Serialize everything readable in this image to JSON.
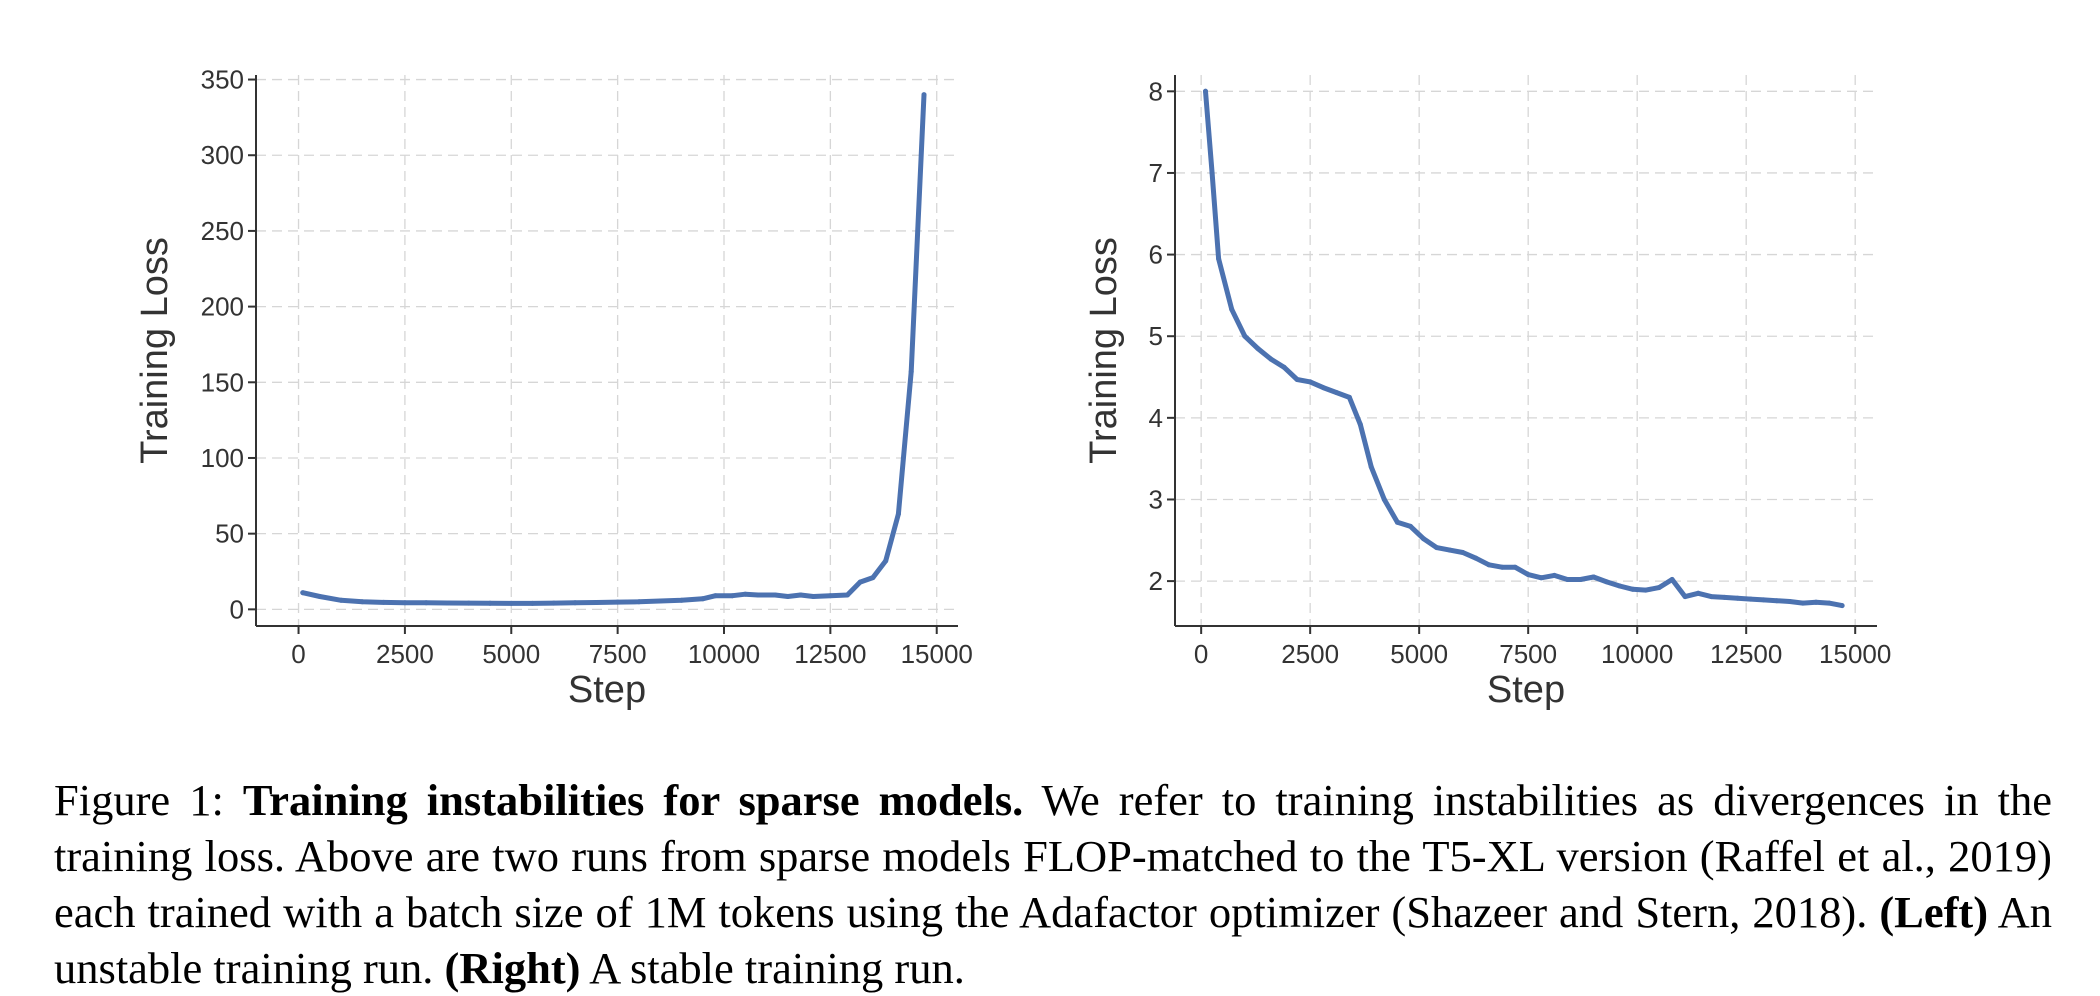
{
  "chart_data": [
    {
      "type": "line",
      "title": "",
      "xlabel": "Step",
      "ylabel": "Training Loss",
      "xlim": [
        -1000,
        15500
      ],
      "ylim": [
        -11,
        353
      ],
      "xticks": [
        0,
        2500,
        5000,
        7500,
        10000,
        12500,
        15000
      ],
      "yticks": [
        0,
        50,
        100,
        150,
        200,
        250,
        300,
        350
      ],
      "grid": true,
      "series": [
        {
          "color": "#4c72b0",
          "x": [
            100,
            500,
            1000,
            1500,
            2000,
            2500,
            3000,
            3500,
            4000,
            4500,
            5000,
            5500,
            6000,
            6500,
            7000,
            7500,
            8000,
            8500,
            9000,
            9500,
            9800,
            10200,
            10500,
            10800,
            11200,
            11500,
            11800,
            12100,
            12500,
            12900,
            13200,
            13500,
            13800,
            14100,
            14400,
            14700
          ],
          "y": [
            11,
            8.5,
            6,
            5,
            4.6,
            4.4,
            4.3,
            4.2,
            4.1,
            4.0,
            3.9,
            3.9,
            4.1,
            4.3,
            4.5,
            4.8,
            5,
            5.5,
            6,
            7,
            9,
            9,
            10,
            9.5,
            9.5,
            8.5,
            9.5,
            8.5,
            9,
            9.5,
            18,
            21,
            32,
            63,
            157,
            340
          ]
        }
      ]
    },
    {
      "type": "line",
      "title": "",
      "xlabel": "Step",
      "ylabel": "Training Loss",
      "xlim": [
        -600,
        15500
      ],
      "ylim": [
        1.45,
        8.2
      ],
      "xticks": [
        0,
        2500,
        5000,
        7500,
        10000,
        12500,
        15000
      ],
      "yticks": [
        2,
        3,
        4,
        5,
        6,
        7,
        8
      ],
      "grid": true,
      "series": [
        {
          "color": "#4c72b0",
          "x": [
            100,
            250,
            400,
            700,
            1000,
            1300,
            1600,
            1900,
            2200,
            2500,
            2800,
            3100,
            3400,
            3650,
            3900,
            4200,
            4500,
            4800,
            5100,
            5400,
            5700,
            6000,
            6300,
            6600,
            6900,
            7200,
            7500,
            7800,
            8100,
            8400,
            8700,
            9000,
            9300,
            9600,
            9900,
            10200,
            10500,
            10800,
            11100,
            11400,
            11700,
            12000,
            12300,
            12600,
            12900,
            13200,
            13500,
            13800,
            14100,
            14400,
            14700
          ],
          "y": [
            8.0,
            7.0,
            5.95,
            5.33,
            5.0,
            4.85,
            4.72,
            4.62,
            4.47,
            4.44,
            4.37,
            4.31,
            4.25,
            3.92,
            3.4,
            3.0,
            2.72,
            2.67,
            2.52,
            2.41,
            2.38,
            2.35,
            2.28,
            2.2,
            2.17,
            2.17,
            2.08,
            2.04,
            2.07,
            2.02,
            2.02,
            2.05,
            1.99,
            1.94,
            1.9,
            1.89,
            1.92,
            2.02,
            1.81,
            1.85,
            1.81,
            1.8,
            1.79,
            1.78,
            1.77,
            1.76,
            1.75,
            1.73,
            1.74,
            1.73,
            1.7
          ]
        }
      ]
    }
  ],
  "caption": {
    "label": "Figure 1: ",
    "bold_title": "Training instabilities for sparse models.",
    "text1": " We refer to training instabilities as divergences in the training loss.  Above are two runs from sparse models FLOP-matched to the T5-XL version (Raffel et al., 2019) each trained with a batch size of 1M tokens using the Adafactor optimizer (Shazeer and Stern, 2018). ",
    "bold_left": "(Left)",
    "text2": " An unstable training run. ",
    "bold_right": "(Right)",
    "text3": " A stable training run."
  }
}
